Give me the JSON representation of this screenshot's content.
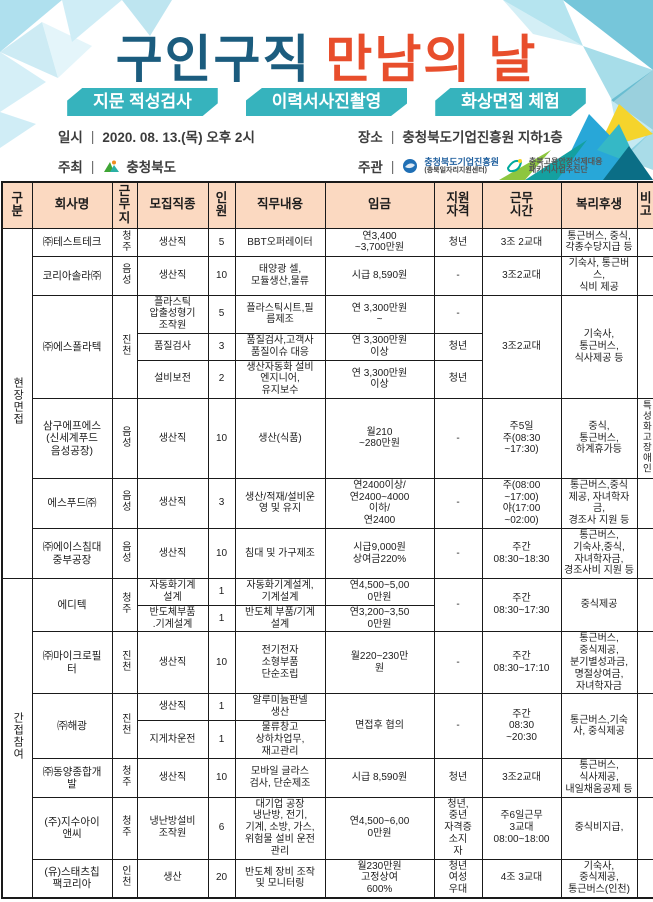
{
  "header": {
    "title_part1": "구인구직",
    "title_part2": "만남의 날",
    "pills": [
      "지문 적성검사",
      "이력서사진촬영",
      "화상면접 체험"
    ],
    "info": {
      "date_label": "일시",
      "date_value": "2020. 08. 13.(목) 오후 2시",
      "place_label": "장소",
      "place_value": "충청북도기업진흥원 지하1층",
      "host_label": "주최",
      "host_value": "충청북도",
      "organizer_label": "주관",
      "organizer1_name": "충청북도기업진흥원",
      "organizer1_sub": "(충북일자리지원센터)",
      "organizer2_line1": "충북고용안정선제대응",
      "organizer2_line2": "패키지사업추진단"
    },
    "icons": {
      "host_logo": "chungbuk-province-logo",
      "organizer1_logo": "enterprise-agency-logo",
      "organizer2_logo": "package-project-logo"
    }
  },
  "colors": {
    "title_blue": "#1b5c7e",
    "title_orange": "#e84e2c",
    "pill_teal": "#36b3bd",
    "table_header_bg": "#fbd9c1"
  },
  "table": {
    "headers": [
      "구\n분",
      "회사명",
      "근\n무\n지",
      "모집직종",
      "인\n원",
      "직무내용",
      "임금",
      "지원\n자격",
      "근무\n시간",
      "복리후생",
      "비\n고"
    ],
    "groups": [
      {
        "group": "현장면접",
        "companies": [
          {
            "name": "㈜테스트테크",
            "location": "청주",
            "rows": [
              {
                "job": "생산직",
                "count": "5",
                "duty": "BBT오퍼레이터",
                "wage": "연3,400\n~3,700만원",
                "qual": "청년"
              }
            ],
            "worktime": "3조 2교대",
            "welfare": "통근버스, 중식,\n각종수당지급 등",
            "note": ""
          },
          {
            "name": "코리아솔라㈜",
            "location": "음성",
            "rows": [
              {
                "job": "생산직",
                "count": "10",
                "duty": "태양광 셀,\n모듈생산,물류",
                "wage": "시급 8,590원",
                "qual": "-"
              }
            ],
            "worktime": "3조2교대",
            "welfare": "기숙사, 통근버스,\n식비 제공",
            "note": ""
          },
          {
            "name": "㈜에스폴라텍",
            "location": "진천",
            "rows": [
              {
                "job": "플라스틱\n압출성형기\n조작원",
                "count": "5",
                "duty": "플라스틱시트,필\n름제조",
                "wage": "연 3,300만원\n~",
                "qual": "-"
              },
              {
                "job": "품질검사",
                "count": "3",
                "duty": "품질검사,고객사\n품질이슈 대응",
                "wage": "연 3,300만원\n이상",
                "qual": "청년"
              },
              {
                "job": "설비보전",
                "count": "2",
                "duty": "생산자동화 설비\n엔지니어,\n유지보수",
                "wage": "연 3,300만원\n이상",
                "qual": "청년"
              }
            ],
            "worktime": "3조2교대",
            "welfare": "기숙사,\n통근버스,\n식사제공 등",
            "note": ""
          },
          {
            "name": "삼구에프에스\n(신세계푸드\n음성공장)",
            "location": "음성",
            "rows": [
              {
                "job": "생산직",
                "count": "10",
                "duty": "생산(식품)",
                "wage": "월210\n~280만원",
                "qual": "-"
              }
            ],
            "worktime": "주5일\n주(08:30\n~17:30)",
            "welfare": "중식,\n통근버스,\n하계휴가등",
            "note": "특성화고장애인"
          },
          {
            "name": "에스푸드㈜",
            "location": "음성",
            "rows": [
              {
                "job": "생산직",
                "count": "3",
                "duty": "생산/적재/설비운\n영 및 유지",
                "wage": "연2400이상/\n연2400~4000\n이하/\n연2400",
                "qual": "-"
              }
            ],
            "worktime": "주(08:00\n~17:00)\n야(17:00\n~02:00)",
            "welfare": "통근버스,중식\n제공, 자녀학자금,\n경조사 지원 등",
            "note": ""
          },
          {
            "name": "㈜에이스침대\n중부공장",
            "location": "음성",
            "rows": [
              {
                "job": "생산직",
                "count": "10",
                "duty": "침대 및 가구제조",
                "wage": "시급9,000원\n상여금220%",
                "qual": "-"
              }
            ],
            "worktime": "주간\n08:30~18:30",
            "welfare": "통근버스,\n기숙사,중식,\n자녀학자금,\n경조사비 지원 등",
            "note": ""
          }
        ]
      },
      {
        "group": "간접참여",
        "companies": [
          {
            "name": "에디텍",
            "location": "청주",
            "rows": [
              {
                "job": "자동화기계\n설계",
                "count": "1",
                "duty": "자동화기계설계,\n기계설계",
                "wage": "연4,500~5,00\n0만원"
              },
              {
                "job": "반도체부품\n.기계설계",
                "count": "1",
                "duty": "반도체 부품/기계\n설계",
                "wage": "연3,200~3,50\n0만원"
              }
            ],
            "qual": "-",
            "worktime": "주간\n08:30~17:30",
            "welfare": "중식제공",
            "note": ""
          },
          {
            "name": "㈜마이크로필\n터",
            "location": "진천",
            "rows": [
              {
                "job": "생산직",
                "count": "10",
                "duty": "전기전자\n소형부품\n단순조립",
                "wage": "월220~230만\n원",
                "qual": "-"
              }
            ],
            "worktime": "주간\n08:30~17:10",
            "welfare": "통근버스,\n중식제공,\n분기별성과금,\n명절상여금,\n자녀학자금",
            "note": ""
          },
          {
            "name": "㈜해광",
            "location": "진천",
            "rows": [
              {
                "job": "생산직",
                "count": "1",
                "duty": "알루미늄판넬\n생산"
              },
              {
                "job": "지게차운전",
                "count": "1",
                "duty": "물류창고\n상하차업무,\n재고관리"
              }
            ],
            "wage": "면접후 협의",
            "qual": "-",
            "worktime": "주간\n08:30\n~20:30",
            "welfare": "통근버스,기숙\n사, 중식제공",
            "note": ""
          },
          {
            "name": "㈜동양종합개\n발",
            "location": "청주",
            "rows": [
              {
                "job": "생산직",
                "count": "10",
                "duty": "모바일 글라스\n검사, 단순제조",
                "wage": "시급 8,590원",
                "qual": "청년"
              }
            ],
            "worktime": "3조2교대",
            "welfare": "통근버스,\n식사제공,\n내일채움공제 등",
            "note": ""
          },
          {
            "name": "(주)지수아이\n앤씨",
            "location": "청주",
            "rows": [
              {
                "job": "냉난방설비\n조작원",
                "count": "6",
                "duty": "대기업 공장\n냉난방, 전기,\n기계, 소방, 가스,\n위험물 설비 운전\n관리",
                "wage": "연4,500~6,00\n0만원",
                "qual": "청년,\n중년\n자격증\n소지\n자"
              }
            ],
            "worktime": "주6일근무\n3교대\n08:00~18:00",
            "welfare": "중식비지급,",
            "note": ""
          },
          {
            "name": "(유)스태츠칩\n팩코리아",
            "location": "인천",
            "rows": [
              {
                "job": "생산",
                "count": "20",
                "duty": "반도체 장비 조작\n및 모니터링",
                "wage": "월230만원\n고정상여\n600%",
                "qual": "청년\n여성\n우대"
              }
            ],
            "worktime": "4조 3교대",
            "welfare": "기숙사,\n중식제공,\n통근버스(인천)",
            "note": ""
          }
        ]
      }
    ]
  }
}
